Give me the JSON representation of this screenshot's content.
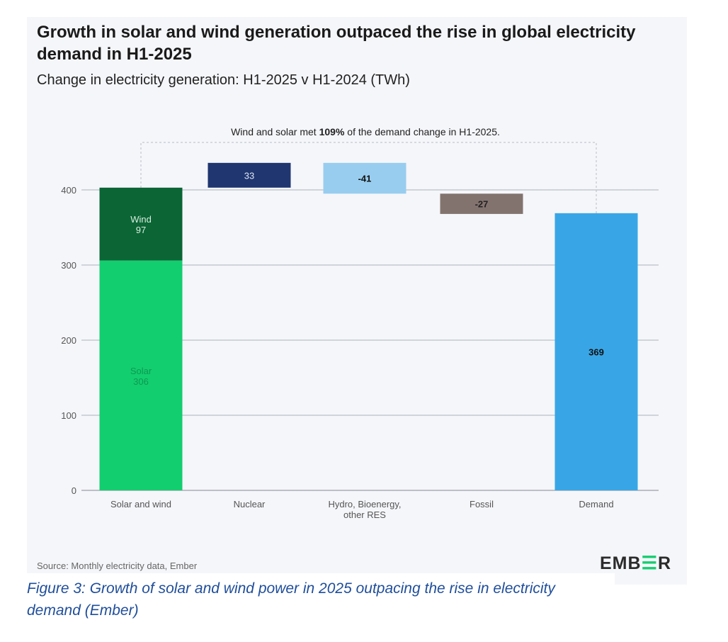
{
  "title": "Growth in solar and wind generation outpaced the rise in global electricity demand in H1-2025",
  "subtitle": "Change in electricity generation: H1-2025 v H1-2024 (TWh)",
  "annotation": {
    "prefix": "Wind and solar met ",
    "bold": "109%",
    "suffix": " of the demand change in H1-2025."
  },
  "source": "Source: Monthly electricity data, Ember",
  "logo": "EMBER",
  "caption": "Figure 3: Growth of solar and wind power in 2025 outpacing the rise in electricity demand (Ember)",
  "chart_data": {
    "type": "bar",
    "subtype": "waterfall",
    "categories": [
      "Solar and wind",
      "Nuclear",
      "Hydro, Bioenergy, other RES",
      "Fossil",
      "Demand"
    ],
    "ylim": [
      0,
      450
    ],
    "yticks": [
      0,
      100,
      200,
      300,
      400
    ],
    "grid": true,
    "bars": [
      {
        "category": "Solar and wind",
        "label": "Solar",
        "value": 306,
        "base": 0,
        "display": "306",
        "color": "#13ce6f",
        "text_color": "#0c9a52"
      },
      {
        "category": "Solar and wind",
        "label": "Wind",
        "value": 97,
        "base": 306,
        "display": "97",
        "color": "#0b6535",
        "text_color": "#d8eedd"
      },
      {
        "category": "Nuclear",
        "value": 33,
        "base": 403,
        "display": "33",
        "color": "#1f3670",
        "text_color": "#dfe5f3"
      },
      {
        "category": "Hydro, Bioenergy, other RES",
        "value": -41,
        "base": 436,
        "display": "-41",
        "color": "#98cdef",
        "text_color": "#111"
      },
      {
        "category": "Fossil",
        "value": -27,
        "base": 395,
        "display": "-27",
        "color": "#83736e",
        "text_color": "#222"
      },
      {
        "category": "Demand",
        "value": 369,
        "base": 0,
        "display": "369",
        "color": "#38a6e6",
        "text_color": "#111"
      }
    ]
  }
}
